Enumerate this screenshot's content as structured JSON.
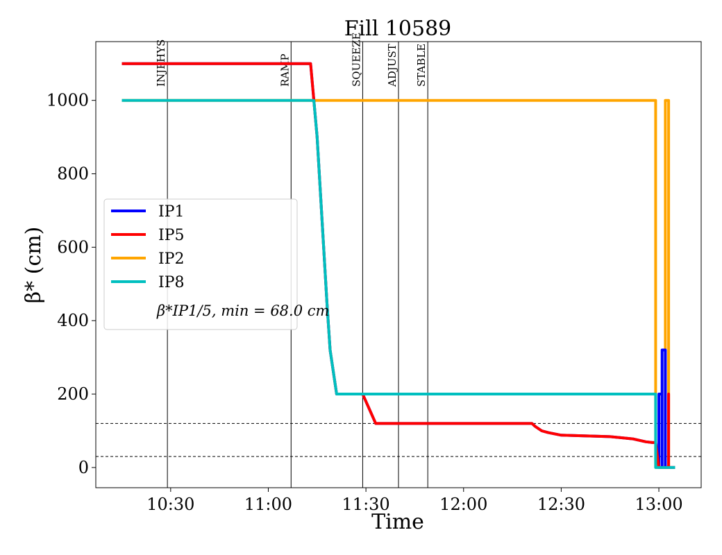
{
  "chart_data": {
    "type": "line",
    "title": "Fill 10589",
    "xlabel": "Time",
    "ylabel": "β* (cm)",
    "xlim": [
      "10:07",
      "13:13"
    ],
    "ylim": [
      -55,
      1160
    ],
    "x_ticks": [
      "10:30",
      "11:00",
      "11:30",
      "12:00",
      "12:30",
      "13:00"
    ],
    "y_ticks": [
      0,
      200,
      400,
      600,
      800,
      1000
    ],
    "grid": false,
    "legend": {
      "placement": "center-left",
      "entries": [
        "IP1",
        "IP5",
        "IP2",
        "IP8"
      ],
      "note": "β*IP1/5, min = 68.0 cm"
    },
    "colors": {
      "IP1": "#0000ff",
      "IP5": "#ff0000",
      "IP2": "#ffa500",
      "IP8": "#00bfbf",
      "phase_lines": "#000000"
    },
    "phases": [
      {
        "label": "INJPHYS",
        "time": "10:29"
      },
      {
        "label": "RAMP",
        "time": "11:07"
      },
      {
        "label": "SQUEEZE",
        "time": "11:29"
      },
      {
        "label": "ADJUST",
        "time": "11:40"
      },
      {
        "label": "STABLE",
        "time": "11:49"
      }
    ],
    "reference_lines": [
      30,
      120
    ],
    "series": [
      {
        "name": "IP1",
        "points": [
          [
            "10:15",
            1100
          ],
          [
            "11:13",
            1100
          ],
          [
            "11:14",
            1000
          ],
          [
            "11:15",
            900
          ],
          [
            "11:16",
            750
          ],
          [
            "11:17",
            600
          ],
          [
            "11:18",
            450
          ],
          [
            "11:19",
            320
          ],
          [
            "11:21",
            200
          ],
          [
            "11:29",
            200
          ],
          [
            "11:31",
            160
          ],
          [
            "11:33",
            120
          ],
          [
            "12:21",
            120
          ],
          [
            "12:22",
            112
          ],
          [
            "12:24",
            100
          ],
          [
            "12:26",
            95
          ],
          [
            "12:30",
            88
          ],
          [
            "12:45",
            84
          ],
          [
            "12:52",
            78
          ],
          [
            "12:56",
            70
          ],
          [
            "12:58",
            68
          ],
          [
            "12:59",
            68
          ],
          [
            "13:00",
            0
          ],
          [
            "13:00",
            200
          ],
          [
            "13:01",
            200
          ],
          [
            "13:01",
            0
          ],
          [
            "13:01",
            320
          ],
          [
            "13:02",
            320
          ],
          [
            "13:02",
            0
          ],
          [
            "13:05",
            0
          ]
        ]
      },
      {
        "name": "IP5",
        "points": [
          [
            "10:15",
            1100
          ],
          [
            "11:13",
            1100
          ],
          [
            "11:14",
            1000
          ],
          [
            "11:15",
            900
          ],
          [
            "11:16",
            750
          ],
          [
            "11:17",
            600
          ],
          [
            "11:18",
            450
          ],
          [
            "11:19",
            320
          ],
          [
            "11:21",
            200
          ],
          [
            "11:29",
            200
          ],
          [
            "11:31",
            160
          ],
          [
            "11:33",
            120
          ],
          [
            "12:21",
            120
          ],
          [
            "12:22",
            112
          ],
          [
            "12:24",
            100
          ],
          [
            "12:26",
            95
          ],
          [
            "12:30",
            88
          ],
          [
            "12:45",
            84
          ],
          [
            "12:52",
            78
          ],
          [
            "12:56",
            70
          ],
          [
            "12:58",
            68
          ],
          [
            "12:59",
            68
          ],
          [
            "13:00",
            0
          ],
          [
            "13:03",
            0
          ],
          [
            "13:03",
            200
          ],
          [
            "13:03",
            0
          ],
          [
            "13:05",
            0
          ]
        ]
      },
      {
        "name": "IP2",
        "points": [
          [
            "10:15",
            1000
          ],
          [
            "11:14",
            1000
          ],
          [
            "12:59",
            1000
          ],
          [
            "12:59",
            0
          ],
          [
            "13:02",
            0
          ],
          [
            "13:02",
            1000
          ],
          [
            "13:03",
            1000
          ],
          [
            "13:03",
            0
          ],
          [
            "13:05",
            0
          ]
        ]
      },
      {
        "name": "IP8",
        "points": [
          [
            "10:15",
            1000
          ],
          [
            "11:14",
            1000
          ],
          [
            "11:15",
            900
          ],
          [
            "11:16",
            750
          ],
          [
            "11:17",
            600
          ],
          [
            "11:18",
            450
          ],
          [
            "11:19",
            320
          ],
          [
            "11:21",
            200
          ],
          [
            "12:59",
            200
          ],
          [
            "12:59",
            0
          ],
          [
            "13:05",
            0
          ]
        ]
      }
    ]
  }
}
